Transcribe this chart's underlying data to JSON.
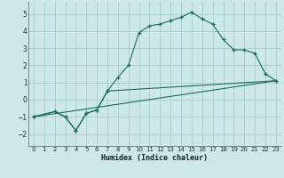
{
  "background_color": "#cce8e8",
  "grid_color": "#aacccc",
  "line_color": "#1a6b5a",
  "xlabel": "Humidex (Indice chaleur)",
  "xlim": [
    -0.5,
    23.5
  ],
  "ylim": [
    -2.7,
    5.7
  ],
  "xticks": [
    0,
    1,
    2,
    3,
    4,
    5,
    6,
    7,
    8,
    9,
    10,
    11,
    12,
    13,
    14,
    15,
    16,
    17,
    18,
    19,
    20,
    21,
    22,
    23
  ],
  "yticks": [
    -2,
    -1,
    0,
    1,
    2,
    3,
    4,
    5
  ],
  "line1_x": [
    0,
    2,
    3,
    4,
    5,
    6,
    7,
    8,
    9,
    10,
    11,
    12,
    13,
    14,
    15,
    16,
    17,
    18,
    19,
    20,
    21,
    22,
    23
  ],
  "line1_y": [
    -1.0,
    -0.7,
    -1.0,
    -1.8,
    -0.8,
    -0.6,
    0.5,
    1.3,
    2.0,
    3.9,
    4.3,
    4.4,
    4.6,
    4.8,
    5.1,
    4.7,
    4.4,
    3.5,
    2.9,
    2.9,
    2.7,
    1.5,
    1.1
  ],
  "line2_x": [
    0,
    2,
    3,
    4,
    5,
    6,
    7,
    23
  ],
  "line2_y": [
    -1.0,
    -0.7,
    -1.0,
    -1.8,
    -0.8,
    -0.6,
    0.5,
    1.1
  ],
  "line3_x": [
    0,
    23
  ],
  "line3_y": [
    -1.0,
    1.1
  ]
}
